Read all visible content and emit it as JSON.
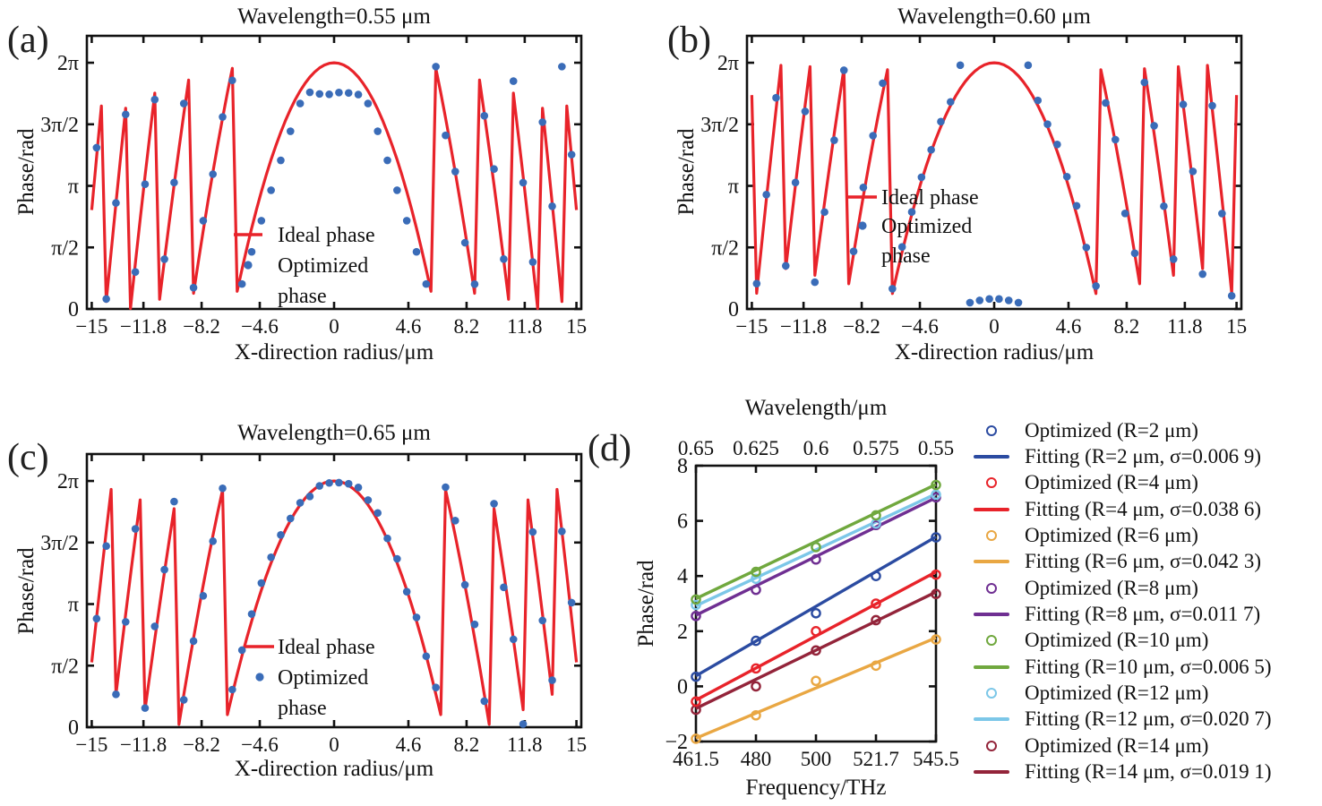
{
  "figure": {
    "background": "#ffffff"
  },
  "colors": {
    "axis": "#111111",
    "text": "#111111",
    "ideal_red": "#e8232a",
    "optimized_blue": "#3a6cb8"
  },
  "chart_data": [
    {
      "id": "a",
      "panel_letter": "(a)",
      "type": "line+scatter",
      "title": "Wavelength=0.55 μm",
      "xlabel": "X-direction radius/μm",
      "ylabel": "Phase/rad",
      "xlim": [
        -15.3,
        15.3
      ],
      "ylim": [
        0,
        6.97
      ],
      "xticks": {
        "values": [
          -15,
          -11.8,
          -8.2,
          -4.6,
          0,
          4.6,
          8.2,
          11.8,
          15
        ],
        "labels": [
          "−15",
          "−11.8",
          "−8.2",
          "−4.6",
          "0",
          "4.6",
          "8.2",
          "11.8",
          "15"
        ]
      },
      "yticks": {
        "values": [
          0,
          1.5708,
          3.1416,
          4.7124,
          6.2832
        ],
        "labels": [
          "0",
          "π/2",
          "π",
          "3π/2",
          "2π"
        ]
      },
      "model": {
        "type": "hyperbolic-metalens-wrapped-phase",
        "formula": "phi(x)=2π−mod((2π/λ)(√(x²+f²)−f),2π)",
        "wavelength_um": 0.55,
        "focal_length_um": 35,
        "lens_radius_um": 15
      },
      "ideal_series": {
        "label": "Ideal phase",
        "color": "#e8232a",
        "sample_step_um": 0.3
      },
      "optimized_series": {
        "label": "Optimized phase",
        "color": "#3a6cb8",
        "dot_spacing_um": 0.6,
        "dot_offset_um": 0.3,
        "center_behavior": {
          "mode": "plateau",
          "value_rad": 5.5,
          "halfwidth_um": 1.5
        }
      },
      "in_plot_legend": [
        "Ideal phase",
        "Optimized",
        "phase"
      ]
    },
    {
      "id": "b",
      "panel_letter": "(b)",
      "type": "line+scatter",
      "title": "Wavelength=0.60 μm",
      "xlabel": "X-direction radius/μm",
      "ylabel": "Phase/rad",
      "xlim": [
        -15.3,
        15.3
      ],
      "ylim": [
        0,
        6.97
      ],
      "xticks": {
        "values": [
          -15,
          -11.8,
          -8.2,
          -4.6,
          0,
          4.6,
          8.2,
          11.8,
          15
        ],
        "labels": [
          "−15",
          "−11.8",
          "−8.2",
          "−4.6",
          "0",
          "4.6",
          "8.2",
          "11.8",
          "15"
        ]
      },
      "yticks": {
        "values": [
          0,
          1.5708,
          3.1416,
          4.7124,
          6.2832
        ],
        "labels": [
          "0",
          "π/2",
          "π",
          "3π/2",
          "2π"
        ]
      },
      "model": {
        "type": "hyperbolic-metalens-wrapped-phase",
        "formula": "phi(x)=2π−mod((2π/λ)(√(x²+f²)−f),2π)",
        "wavelength_um": 0.6,
        "focal_length_um": 35,
        "lens_radius_um": 15
      },
      "ideal_series": {
        "label": "Ideal phase",
        "color": "#e8232a",
        "sample_step_um": 0.3
      },
      "optimized_series": {
        "label": "Optimized phase",
        "color": "#3a6cb8",
        "dot_spacing_um": 0.6,
        "dot_offset_um": 0.3,
        "center_behavior": {
          "mode": "near_zero",
          "value_rad": 0.15,
          "halfwidth_um": 1.5
        }
      },
      "in_plot_legend": [
        "Ideal phase",
        "Optimized",
        "phase"
      ]
    },
    {
      "id": "c",
      "panel_letter": "(c)",
      "type": "line+scatter",
      "title": "Wavelength=0.65 μm",
      "xlabel": "X-direction radius/μm",
      "ylabel": "Phase/rad",
      "xlim": [
        -15.3,
        15.3
      ],
      "ylim": [
        0,
        6.97
      ],
      "xticks": {
        "values": [
          -15,
          -11.8,
          -8.2,
          -4.6,
          0,
          4.6,
          8.2,
          11.8,
          15
        ],
        "labels": [
          "−15",
          "−11.8",
          "−8.2",
          "−4.6",
          "0",
          "4.6",
          "8.2",
          "11.8",
          "15"
        ]
      },
      "yticks": {
        "values": [
          0,
          1.5708,
          3.1416,
          4.7124,
          6.2832
        ],
        "labels": [
          "0",
          "π/2",
          "π",
          "3π/2",
          "2π"
        ]
      },
      "model": {
        "type": "hyperbolic-metalens-wrapped-phase",
        "formula": "phi(x)=2π−mod((2π/λ)(√(x²+f²)−f),2π)",
        "wavelength_um": 0.65,
        "focal_length_um": 35,
        "lens_radius_um": 15
      },
      "ideal_series": {
        "label": "Ideal phase",
        "color": "#e8232a",
        "sample_step_um": 0.3
      },
      "optimized_series": {
        "label": "Optimized phase",
        "color": "#3a6cb8",
        "dot_spacing_um": 0.6,
        "dot_offset_um": 0.3,
        "center_behavior": {
          "mode": "follow"
        }
      },
      "in_plot_legend": [
        "Ideal phase",
        "Optimized",
        "phase"
      ]
    },
    {
      "id": "d",
      "panel_letter": "(d)",
      "type": "scatter+linear-fit",
      "top_xlabel": "Wavelength/μm",
      "top_xticks": [
        "0.65",
        "0.625",
        "0.6",
        "0.575",
        "0.55"
      ],
      "xlabel": "Frequency/THz",
      "xticks": [
        "461.5",
        "480",
        "500",
        "521.7",
        "545.5"
      ],
      "frequencies_thz": [
        461.5,
        480,
        500,
        521.7,
        545.5
      ],
      "ylabel": "Phase/rad",
      "ylim": [
        -2,
        8
      ],
      "yticks": {
        "values": [
          -2,
          0,
          2,
          4,
          6,
          8
        ],
        "labels": [
          "−2",
          "0",
          "2",
          "4",
          "6",
          "8"
        ]
      },
      "series": [
        {
          "r_um": 2,
          "color": "#2b4ba1",
          "sigma": "0.006 9",
          "optimized_label": "Optimized (R=2 μm)",
          "fitting_label": "Fitting (R=2 μm, σ=0.006 9)",
          "points_rad": [
            0.35,
            1.65,
            2.65,
            4.0,
            5.4
          ],
          "fit_endpoints_rad": [
            0.38,
            5.42
          ]
        },
        {
          "r_um": 4,
          "color": "#e8232a",
          "sigma": "0.038 6",
          "optimized_label": "Optimized (R=4 μm)",
          "fitting_label": "Fitting (R=4 μm, σ=0.038 6)",
          "points_rad": [
            -0.55,
            0.65,
            2.0,
            3.0,
            4.05
          ],
          "fit_endpoints_rad": [
            -0.5,
            4.15
          ]
        },
        {
          "r_um": 6,
          "color": "#e9a743",
          "sigma": "0.042 3",
          "optimized_label": "Optimized (R=6 μm)",
          "fitting_label": "Fitting (R=6 μm, σ=0.042 3)",
          "points_rad": [
            -1.9,
            -1.05,
            0.2,
            0.75,
            1.7
          ],
          "fit_endpoints_rad": [
            -1.88,
            1.76
          ]
        },
        {
          "r_um": 8,
          "color": "#6f2f92",
          "sigma": "0.011 7",
          "optimized_label": "Optimized (R=8 μm)",
          "fitting_label": "Fitting (R=8 μm, σ=0.011 7)",
          "points_rad": [
            2.55,
            3.5,
            4.6,
            5.85,
            6.85
          ],
          "fit_endpoints_rad": [
            2.58,
            6.84
          ]
        },
        {
          "r_um": 10,
          "color": "#70a83e",
          "sigma": "0.006 5",
          "optimized_label": "Optimized (R=10 μm)",
          "fitting_label": "Fitting (R=10 μm, σ=0.006 5)",
          "points_rad": [
            3.15,
            4.15,
            5.05,
            6.2,
            7.3
          ],
          "fit_endpoints_rad": [
            3.18,
            7.32
          ]
        },
        {
          "r_um": 12,
          "color": "#7cc7e8",
          "sigma": "0.020 7",
          "optimized_label": "Optimized (R=12 μm)",
          "fitting_label": "Fitting (R=12 μm, σ=0.020 7)",
          "points_rad": [
            2.95,
            3.9,
            5.05,
            5.9,
            6.95
          ],
          "fit_endpoints_rad": [
            2.92,
            6.98
          ]
        },
        {
          "r_um": 14,
          "color": "#93243a",
          "sigma": "0.019 1",
          "optimized_label": "Optimized (R=14 μm)",
          "fitting_label": "Fitting (R=14 μm, σ=0.019 1)",
          "points_rad": [
            -0.85,
            0.0,
            1.3,
            2.4,
            3.35
          ],
          "fit_endpoints_rad": [
            -0.8,
            3.42
          ]
        }
      ],
      "draw_order": [
        2,
        6,
        1,
        0,
        3,
        5,
        4
      ]
    }
  ]
}
